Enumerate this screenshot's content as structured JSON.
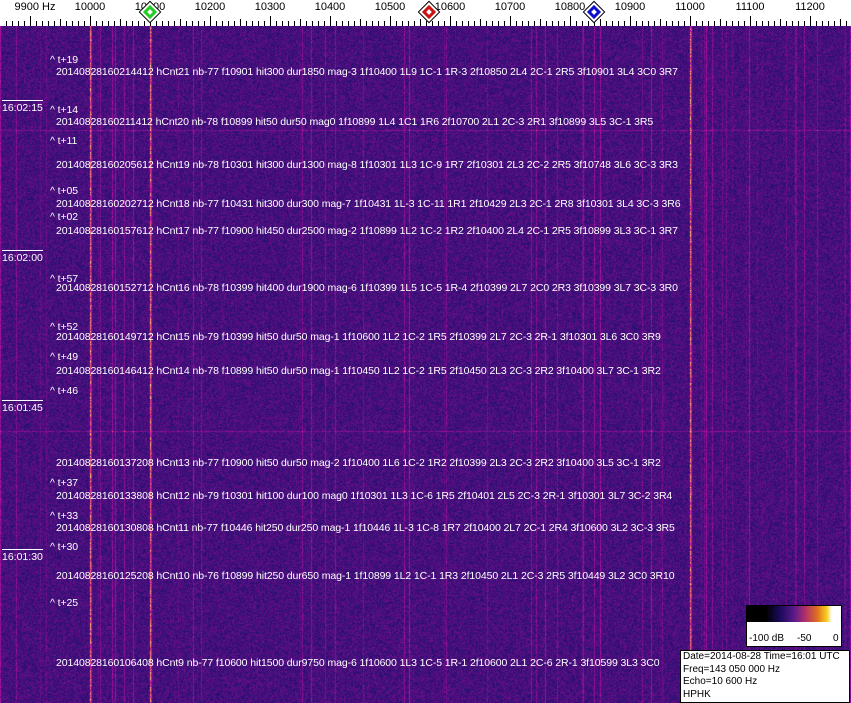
{
  "axis": {
    "unit_label": "9900 Hz",
    "ticks": [
      10000,
      10100,
      10200,
      10300,
      10400,
      10500,
      10600,
      10700,
      10800,
      10900,
      11000,
      11100,
      11200
    ],
    "tick_labels": [
      "10000",
      "10100",
      "10200",
      "10300",
      "10400",
      "10500",
      "10600",
      "10700",
      "10800",
      "10900",
      "11000",
      "11100",
      "11200"
    ]
  },
  "markers": [
    {
      "color": "#22cc22",
      "freq": 10100
    },
    {
      "color": "#cc1111",
      "freq": 10565
    },
    {
      "color": "#1111cc",
      "freq": 10840
    }
  ],
  "time_labels": [
    "16:02:15",
    "16:02:00",
    "16:01:45",
    "16:01:30"
  ],
  "t_markers": [
    "^ t+19",
    "^ t+14",
    "^ t+11",
    "^ t+05",
    "^ t+02",
    "^ t+57",
    "^ t+52",
    "^ t+49",
    "^ t+46",
    "^ t+37",
    "^ t+33",
    "^ t+30",
    "^ t+25"
  ],
  "detections": [
    "20140828160214412 hCnt21 nb-77 f10901 hit300 dur1850 mag-3 1f10400 1L9 1C-1 1R-3 2f10850 2L4 2C-1 2R5 3f10901 3L4 3C0 3R7",
    "20140828160211412 hCnt20 nb-78 f10899 hit50 dur50 mag0 1f10899 1L4 1C1 1R6 2f10700 2L1 2C-3 2R1 3f10899 3L5 3C-1 3R5",
    "20140828160205612 hCnt19 nb-78 f10301 hit300 dur1300 mag-8 1f10301 1L3 1C-9 1R7 2f10301 2L3 2C-2 2R5 3f10748 3L6 3C-3 3R3",
    "20140828160202712 hCnt18 nb-77 f10431 hit300 dur300 mag-7 1f10431 1L-3 1C-11 1R1 2f10429 2L3 2C-1 2R8 3f10301 3L4 3C-3 3R6",
    "20140828160157612 hCnt17 nb-77 f10900 hit450 dur2500 mag-2 1f10899 1L2 1C-2 1R2 2f10400 2L4 2C-1 2R5 3f10899 3L3 3C-1 3R7",
    "20140828160152712 hCnt16 nb-78 f10399 hit400 dur1900 mag-6 1f10399 1L5 1C-5 1R-4 2f10399 2L7 2C0 2R3 3f10399 3L7 3C-3 3R0",
    "20140828160149712 hCnt15 nb-79 f10399 hit50 dur50 mag-1 1f10600 1L2 1C-2 1R5 2f10399 2L7 2C-3 2R-1 3f10301 3L6 3C0 3R9",
    "20140828160146412 hCnt14 nb-78 f10899 hit50 dur50 mag-1 1f10450 1L2 1C-2 1R5 2f10450 2L3 2C-3 2R2 3f10400 3L7 3C-1 3R2",
    "20140828160137208 hCnt13 nb-77 f10900 hit50 dur50 mag-2 1f10400 1L6 1C-2 1R2 2f10399 2L3 2C-3 2R2 3f10400 3L5 3C-1 3R2",
    "20140828160133808 hCnt12 nb-79 f10301 hit100 dur100 mag0 1f10301 1L3 1C-6 1R5 2f10401 2L5 2C-3 2R-1 3f10301 3L7 3C-2 3R4",
    "20140828160130808 hCnt11 nb-77 f10446 hit250 dur250 mag-1 1f10446 1L-3 1C-8 1R7 2f10400 2L7 2C-1 2R4 3f10600 3L2 3C-3 3R5",
    "20140828160125208 hCnt10 nb-76 f10899 hit250 dur650 mag-1 1f10899 1L2 1C-1 1R3 2f10450 2L1 2C-3 2R5 3f10449 3L2 3C0 3R10",
    "20140828160106408 hCnt9 nb-77 f10600 hit1500 dur9750 mag-6 1f10600 1L3 1C-5 1R-1 2f10600 2L1 2C-6 2R-1 3f10599 3L3 3C0"
  ],
  "colorbar": {
    "labels": [
      "-100 dB",
      "-50",
      "0"
    ]
  },
  "info": {
    "line1": "Date=2014-08-28 Time=16:01 UTC",
    "line2": "Freq=143 050 000 Hz",
    "line3": "Echo=10 600 Hz",
    "line4": "HPHK"
  }
}
